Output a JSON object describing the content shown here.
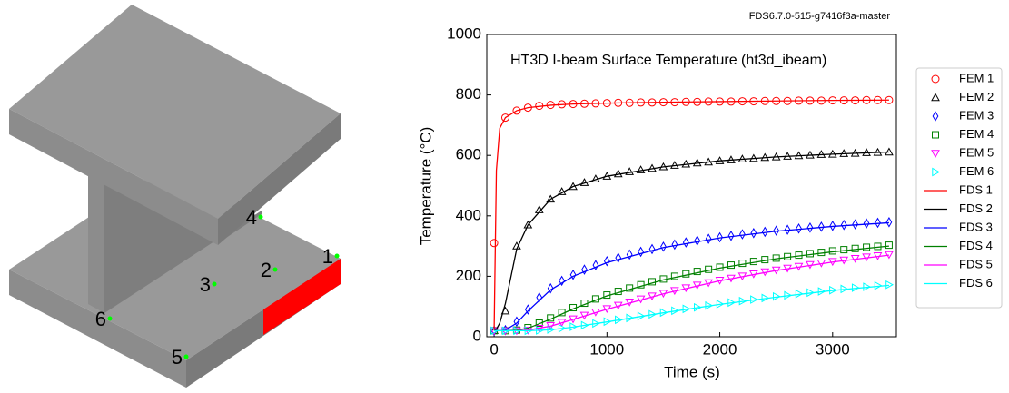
{
  "diagram": {
    "point_labels": [
      "1",
      "2",
      "3",
      "4",
      "5",
      "6"
    ]
  },
  "chart_data": {
    "type": "line",
    "title": "HT3D I-beam Surface Temperature (ht3d_ibeam)",
    "version_label": "FDS6.7.0-515-g7416f3a-master",
    "x_label": "Time (s)",
    "y_label": "Temperature (°C)",
    "xlim": [
      -65,
      3565
    ],
    "ylim": [
      0,
      1000
    ],
    "xticks": [
      0,
      1000,
      2000,
      3000
    ],
    "yticks": [
      0,
      200,
      400,
      600,
      800,
      1000
    ],
    "legend": "outside right",
    "x": [
      0,
      100,
      200,
      300,
      400,
      500,
      600,
      700,
      800,
      900,
      1000,
      1100,
      1200,
      1300,
      1400,
      1500,
      1600,
      1700,
      1800,
      1900,
      2000,
      2100,
      2200,
      2300,
      2400,
      2500,
      2600,
      2700,
      2800,
      2900,
      3000,
      3100,
      3200,
      3300,
      3400,
      3500
    ],
    "series": [
      {
        "name": "FEM 1",
        "color": "#ff0000",
        "marker": "o",
        "values": [
          310,
          725,
          748,
          758,
          764,
          767,
          769,
          770,
          771,
          772,
          773,
          774,
          774,
          775,
          775,
          776,
          776,
          777,
          777,
          778,
          778,
          778,
          779,
          779,
          780,
          780,
          780,
          781,
          781,
          781,
          782,
          782,
          782,
          783,
          783,
          783
        ]
      },
      {
        "name": "FEM 2",
        "color": "#000000",
        "marker": "^",
        "values": [
          20,
          85,
          300,
          370,
          420,
          455,
          480,
          497,
          510,
          522,
          531,
          539,
          546,
          552,
          557,
          562,
          567,
          571,
          575,
          578,
          582,
          585,
          588,
          590,
          593,
          595,
          597,
          599,
          601,
          603,
          604,
          606,
          607,
          609,
          610,
          611
        ]
      },
      {
        "name": "FEM 3",
        "color": "#0000ff",
        "marker": "d",
        "values": [
          20,
          22,
          50,
          90,
          130,
          160,
          185,
          205,
          222,
          237,
          250,
          261,
          272,
          281,
          290,
          298,
          305,
          312,
          318,
          324,
          329,
          334,
          339,
          343,
          347,
          351,
          354,
          358,
          361,
          364,
          367,
          370,
          372,
          375,
          377,
          379
        ]
      },
      {
        "name": "FEM 4",
        "color": "#008000",
        "marker": "s",
        "values": [
          20,
          20,
          22,
          30,
          45,
          62,
          80,
          96,
          111,
          125,
          138,
          150,
          161,
          172,
          182,
          191,
          200,
          208,
          216,
          223,
          230,
          237,
          243,
          249,
          255,
          260,
          265,
          270,
          275,
          279,
          284,
          288,
          292,
          296,
          299,
          303
        ]
      },
      {
        "name": "FEM 5",
        "color": "#ff00ff",
        "marker": "v",
        "values": [
          20,
          20,
          20,
          22,
          28,
          37,
          48,
          59,
          71,
          82,
          93,
          104,
          115,
          125,
          135,
          144,
          153,
          162,
          171,
          179,
          187,
          194,
          201,
          208,
          215,
          221,
          227,
          233,
          239,
          244,
          249,
          254,
          259,
          264,
          268,
          272
        ]
      },
      {
        "name": "FEM 6",
        "color": "#00ffff",
        "marker": ">",
        "values": [
          20,
          20,
          20,
          20,
          21,
          24,
          28,
          33,
          38,
          44,
          50,
          56,
          62,
          68,
          74,
          80,
          86,
          92,
          97,
          103,
          108,
          113,
          118,
          123,
          128,
          133,
          137,
          142,
          146,
          150,
          154,
          158,
          162,
          165,
          169,
          172
        ]
      },
      {
        "name": "FDS 1",
        "color": "#ff0000",
        "x": [
          0,
          20,
          50,
          100,
          200,
          300,
          500,
          700,
          1000,
          1500,
          2000,
          2500,
          3000,
          3500
        ],
        "values": [
          20,
          550,
          690,
          725,
          748,
          758,
          766,
          770,
          773,
          776,
          778,
          780,
          782,
          783
        ]
      },
      {
        "name": "FDS 2",
        "color": "#000000",
        "x": [
          0,
          20,
          50,
          100,
          200,
          300,
          500,
          700,
          1000,
          1500,
          2000,
          2500,
          3000,
          3500
        ],
        "values": [
          20,
          25,
          45,
          110,
          290,
          370,
          455,
          497,
          531,
          562,
          582,
          595,
          604,
          611
        ]
      },
      {
        "name": "FDS 3",
        "color": "#0000ff",
        "x": [
          0,
          20,
          50,
          100,
          200,
          300,
          500,
          700,
          1000,
          1500,
          2000,
          2500,
          3000,
          3500
        ],
        "values": [
          20,
          20,
          20,
          22,
          45,
          85,
          155,
          200,
          245,
          295,
          327,
          349,
          365,
          377
        ]
      },
      {
        "name": "FDS 4",
        "color": "#008000",
        "x": [
          0,
          20,
          50,
          100,
          200,
          300,
          500,
          700,
          1000,
          1500,
          2000,
          2500,
          3000,
          3500
        ],
        "values": [
          20,
          20,
          20,
          20,
          22,
          28,
          58,
          92,
          135,
          188,
          227,
          258,
          281,
          300
        ]
      },
      {
        "name": "FDS 5",
        "color": "#ff00ff",
        "x": [
          0,
          20,
          50,
          100,
          200,
          300,
          500,
          700,
          1000,
          1500,
          2000,
          2500,
          3000,
          3500
        ],
        "values": [
          20,
          20,
          20,
          20,
          20,
          22,
          35,
          57,
          91,
          142,
          185,
          219,
          247,
          270
        ]
      },
      {
        "name": "FDS 6",
        "color": "#00ffff",
        "x": [
          0,
          20,
          50,
          100,
          200,
          300,
          500,
          700,
          1000,
          1500,
          2000,
          2500,
          3000,
          3500
        ],
        "values": [
          20,
          20,
          20,
          20,
          20,
          20,
          23,
          32,
          49,
          79,
          107,
          131,
          153,
          170
        ]
      }
    ]
  }
}
